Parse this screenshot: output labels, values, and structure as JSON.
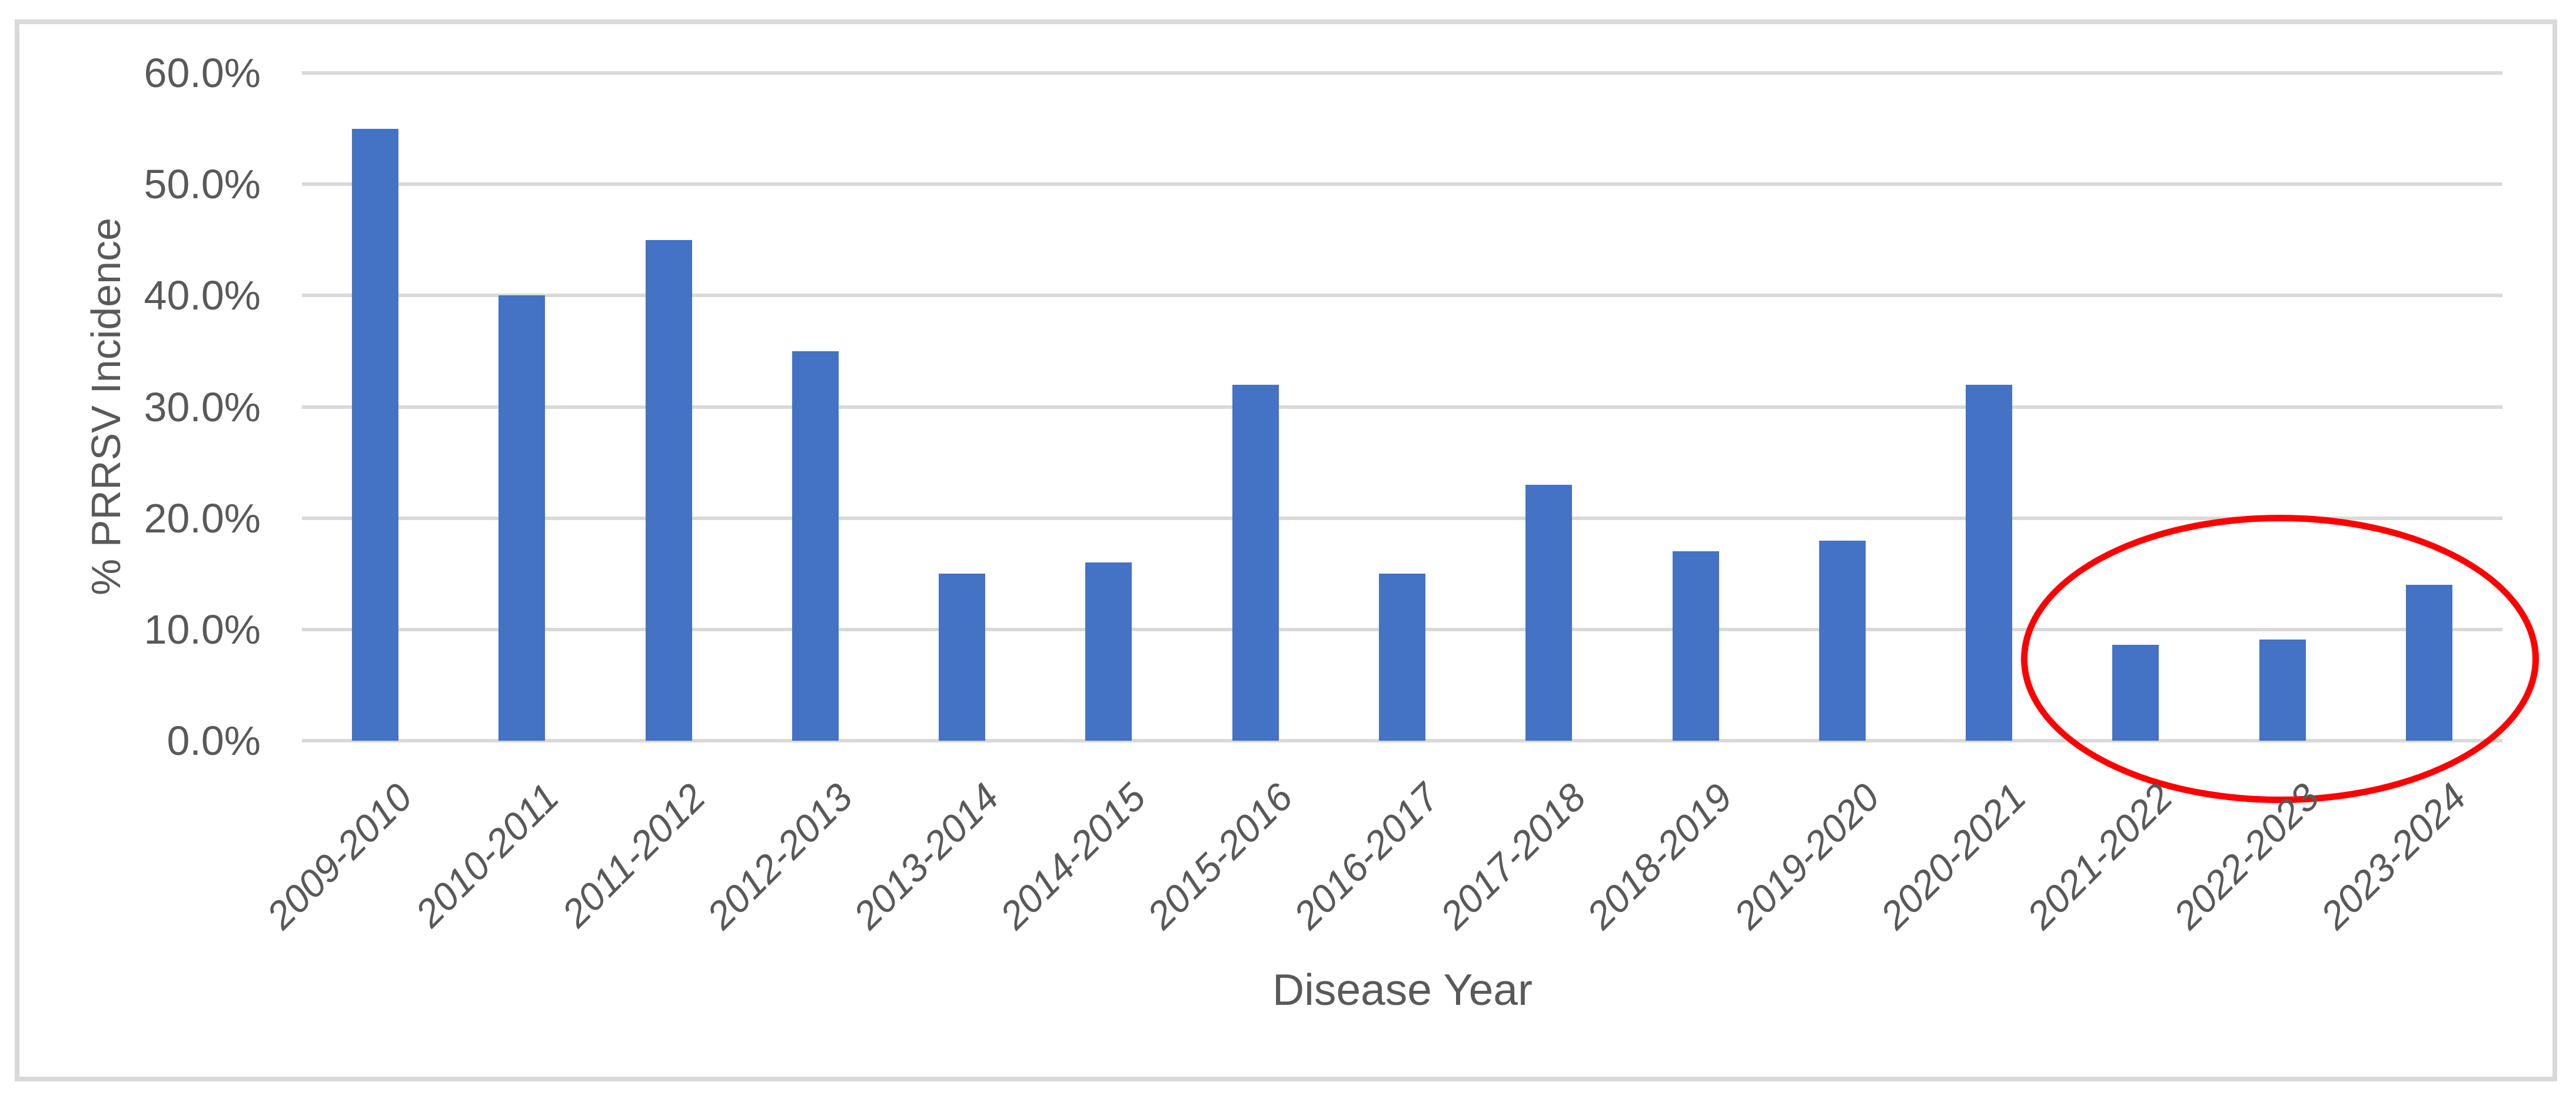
{
  "colors": {
    "bar_fill": "#4472C4",
    "gridline": "#D9D9D9",
    "chart_border": "#D9D9D9",
    "axis_text": "#595959",
    "annotation_stroke": "#FF0000",
    "background": "#FFFFFF"
  },
  "chart_data": {
    "type": "bar",
    "title": "",
    "xlabel": "Disease Year",
    "ylabel": "% PRRSV Incidence",
    "categories": [
      "2009-2010",
      "2010-2011",
      "2011-2012",
      "2012-2013",
      "2013-2014",
      "2014-2015",
      "2015-2016",
      "2016-2017",
      "2017-2018",
      "2018-2019",
      "2019-2020",
      "2020-2021",
      "2021-2022",
      "2022-2023",
      "2023-2024"
    ],
    "values": [
      55,
      40,
      45,
      35,
      15,
      16,
      32,
      15,
      23,
      17,
      18,
      32,
      8.6,
      9.1,
      14
    ],
    "value_unit": "percent",
    "ylim": [
      0,
      60
    ],
    "ytick_labels_top_to_bottom": [
      "60.0%",
      "50.0%",
      "40.0%",
      "30.0%",
      "20.0%",
      "10.0%",
      "0.0%"
    ],
    "grid": "horizontal",
    "legend": "none",
    "annotation": {
      "shape": "ellipse",
      "color": "#FF0000",
      "around_categories": [
        "2021-2022",
        "2022-2023",
        "2023-2024"
      ]
    }
  }
}
